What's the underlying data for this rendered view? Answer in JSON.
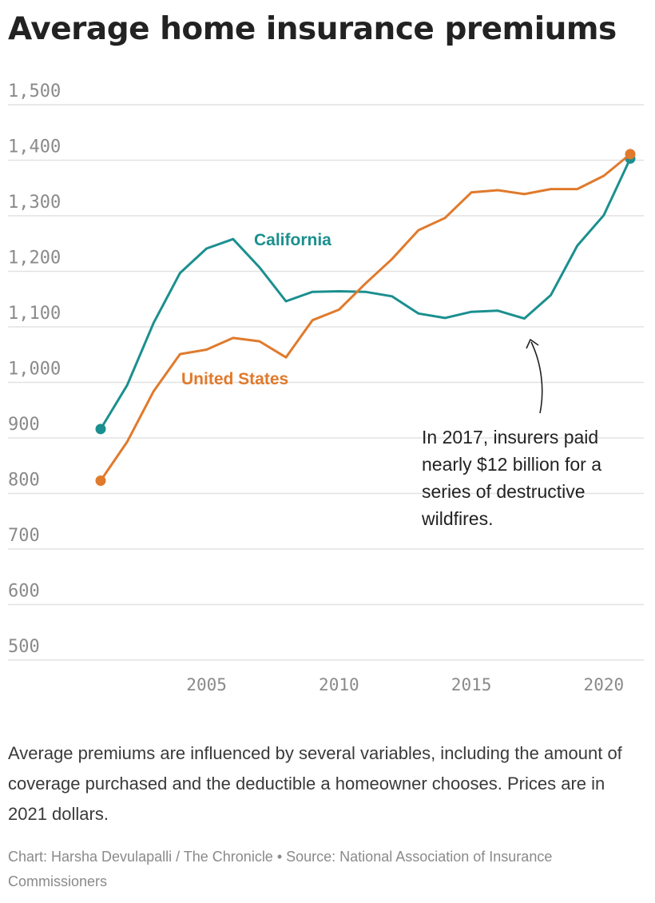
{
  "title": "Average home insurance premiums",
  "annotation": "In 2017, insurers paid nearly $12 billion for a series of destructive wildfires.",
  "description": "Average premiums are influenced by several variables, including the amount of coverage purchased and the deductible a homeowner chooses. Prices are in 2021 dollars.",
  "credit": {
    "chart": "Chart: Harsha Devulapalli / The Chronicle",
    "separator": " • ",
    "source": "Source: National Association of Insurance Commissioners"
  },
  "colors": {
    "california": "#1b8f8f",
    "united_states": "#e07a2c",
    "grid": "#e2e2e2",
    "tick_text": "#8a8a8a"
  },
  "chart_data": {
    "type": "line",
    "title": "Average home insurance premiums",
    "xlabel": "",
    "ylabel": "",
    "ylim": [
      500,
      1500
    ],
    "xlim": [
      2001,
      2021
    ],
    "yticks": [
      500,
      600,
      700,
      800,
      900,
      1000,
      1100,
      1200,
      1300,
      1400,
      1500
    ],
    "ytick_labels": [
      "500",
      "600",
      "700",
      "800",
      "900",
      "1,000",
      "1,100",
      "1,200",
      "1,300",
      "1,400",
      "1,500"
    ],
    "xticks": [
      2005,
      2010,
      2015,
      2020
    ],
    "xtick_labels": [
      "2005",
      "2010",
      "2015",
      "2020"
    ],
    "grid": true,
    "legend": "direct labels on lines",
    "x": [
      2001,
      2002,
      2003,
      2004,
      2005,
      2006,
      2007,
      2008,
      2009,
      2010,
      2011,
      2012,
      2013,
      2014,
      2015,
      2016,
      2017,
      2018,
      2019,
      2020,
      2021
    ],
    "series": [
      {
        "name": "California",
        "key": "california",
        "values": [
          916,
          995,
          1107,
          1197,
          1241,
          1258,
          1207,
          1146,
          1163,
          1164,
          1163,
          1155,
          1124,
          1116,
          1127,
          1129,
          1115,
          1157,
          1246,
          1301,
          1403
        ]
      },
      {
        "name": "United States",
        "key": "united_states",
        "values": [
          823,
          893,
          984,
          1051,
          1059,
          1080,
          1074,
          1045,
          1112,
          1131,
          1178,
          1222,
          1274,
          1296,
          1342,
          1346,
          1339,
          1348,
          1348,
          1372,
          1411
        ]
      }
    ]
  }
}
